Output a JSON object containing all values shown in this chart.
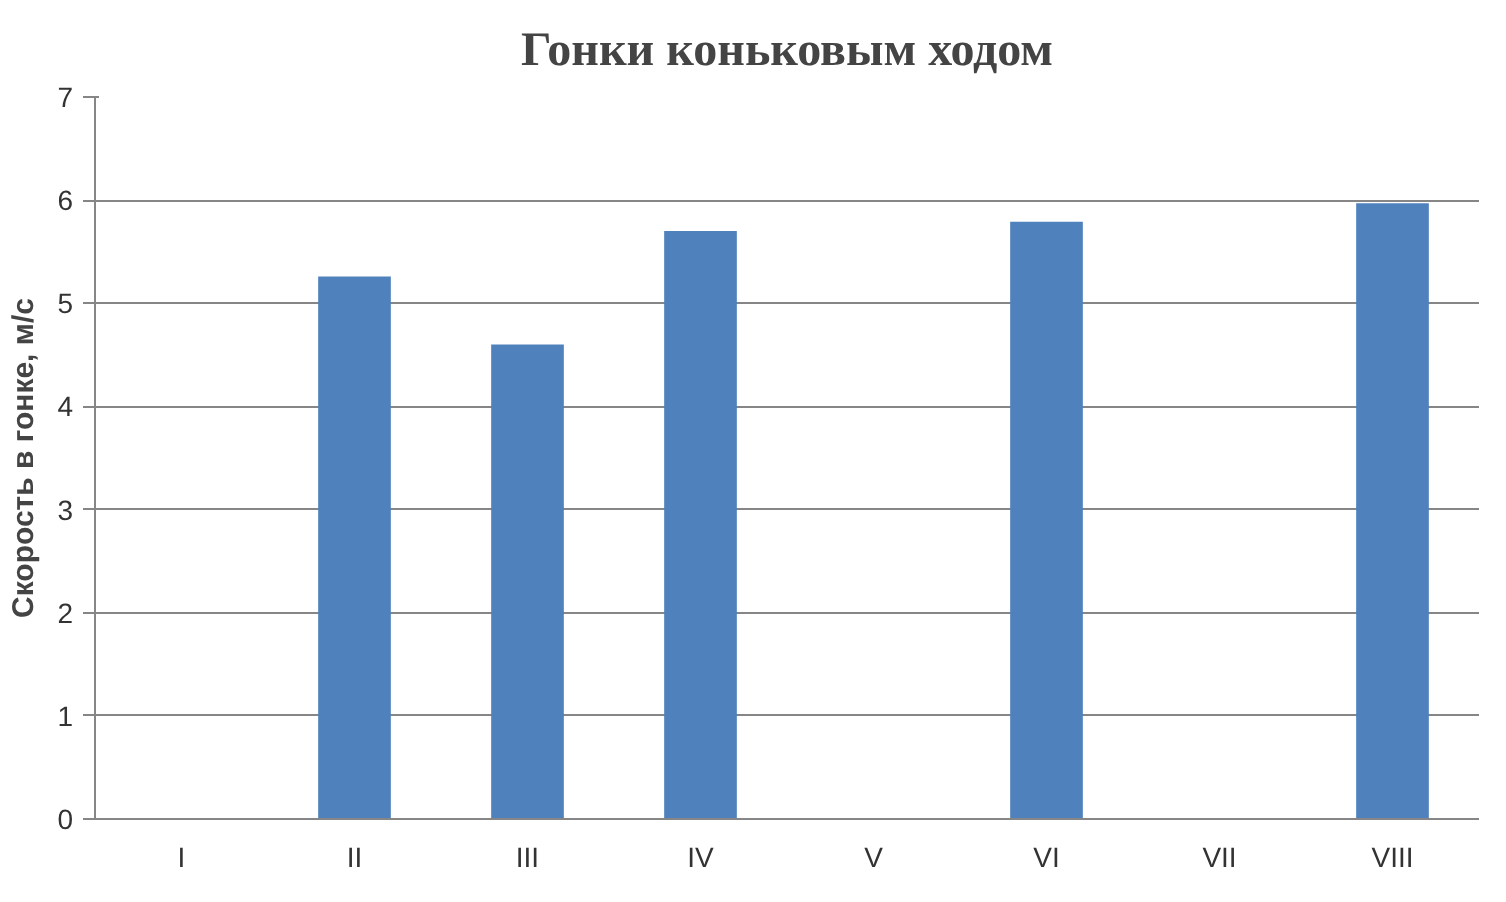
{
  "chart_data": {
    "type": "bar",
    "title": "Гонки коньковым ходом",
    "ylabel": "Скорость в гонке, м/с",
    "categories": [
      "I",
      "II",
      "III",
      "IV",
      "V",
      "VI",
      "VII",
      "VIII"
    ],
    "values": [
      null,
      5.26,
      4.6,
      5.7,
      null,
      5.79,
      null,
      5.97
    ],
    "color": "#4f81bd",
    "ylim": [
      0,
      7
    ],
    "yticks": [
      0,
      1,
      2,
      3,
      4,
      5,
      6,
      7
    ],
    "grid": "y"
  }
}
